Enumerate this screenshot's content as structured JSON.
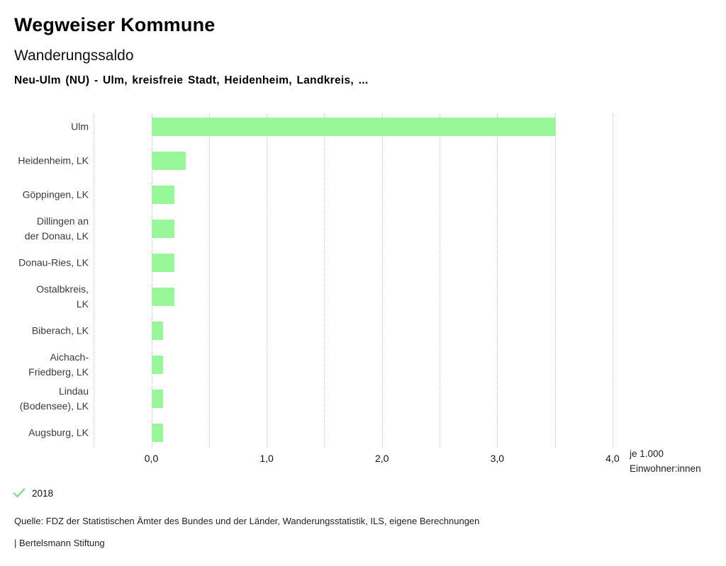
{
  "header": {
    "app_title": "Wegweiser Kommune",
    "chart_title": "Wanderungssaldo",
    "chart_subtitle": "Neu-Ulm (NU) - Ulm, kreisfreie Stadt, Heidenheim, Landkreis, ..."
  },
  "chart_data": {
    "type": "bar",
    "orientation": "horizontal",
    "title": "Wanderungssaldo",
    "subtitle": "Neu-Ulm (NU) - Ulm, kreisfreie Stadt, Heidenheim, Landkreis, ...",
    "categories": [
      "Ulm",
      "Heidenheim, LK",
      "Göppingen, LK",
      "Dillingen an\nder Donau, LK",
      "Donau-Ries, LK",
      "Ostalbkreis,\nLK",
      "Biberach, LK",
      "Aichach-\nFriedberg, LK",
      "Lindau\n(Bodensee), LK",
      "Augsburg, LK"
    ],
    "series": [
      {
        "name": "2018",
        "values": [
          3.5,
          0.3,
          0.2,
          0.2,
          0.2,
          0.2,
          0.1,
          0.1,
          0.1,
          0.1
        ]
      }
    ],
    "xlabel_lines": [
      "je 1.000",
      "Einwohner:innen"
    ],
    "xlim": [
      -0.5,
      4.0
    ],
    "grid_step": 0.5,
    "grid": true,
    "x_ticks": [
      {
        "value": 0,
        "label": "0,0"
      },
      {
        "value": 1,
        "label": "1,0"
      },
      {
        "value": 2,
        "label": "2,0"
      },
      {
        "value": 3,
        "label": "3,0"
      },
      {
        "value": 4,
        "label": "4,0"
      }
    ],
    "legend_position": "bottom-left",
    "bar_color": "#98f798"
  },
  "legend": {
    "check_icon": "check-icon",
    "label": "2018",
    "check_color": "#8ce08c"
  },
  "footer": {
    "source": "Quelle: FDZ der Statistischen Ämter des Bundes und der Länder, Wanderungsstatistik, ILS, eigene Berechnungen",
    "branding": "| Bertelsmann Stiftung"
  },
  "colors": {
    "bar": "#98f798",
    "grid": "#c9c9c9",
    "category_label": "#3a3a3a",
    "tick_label": "#111111"
  }
}
